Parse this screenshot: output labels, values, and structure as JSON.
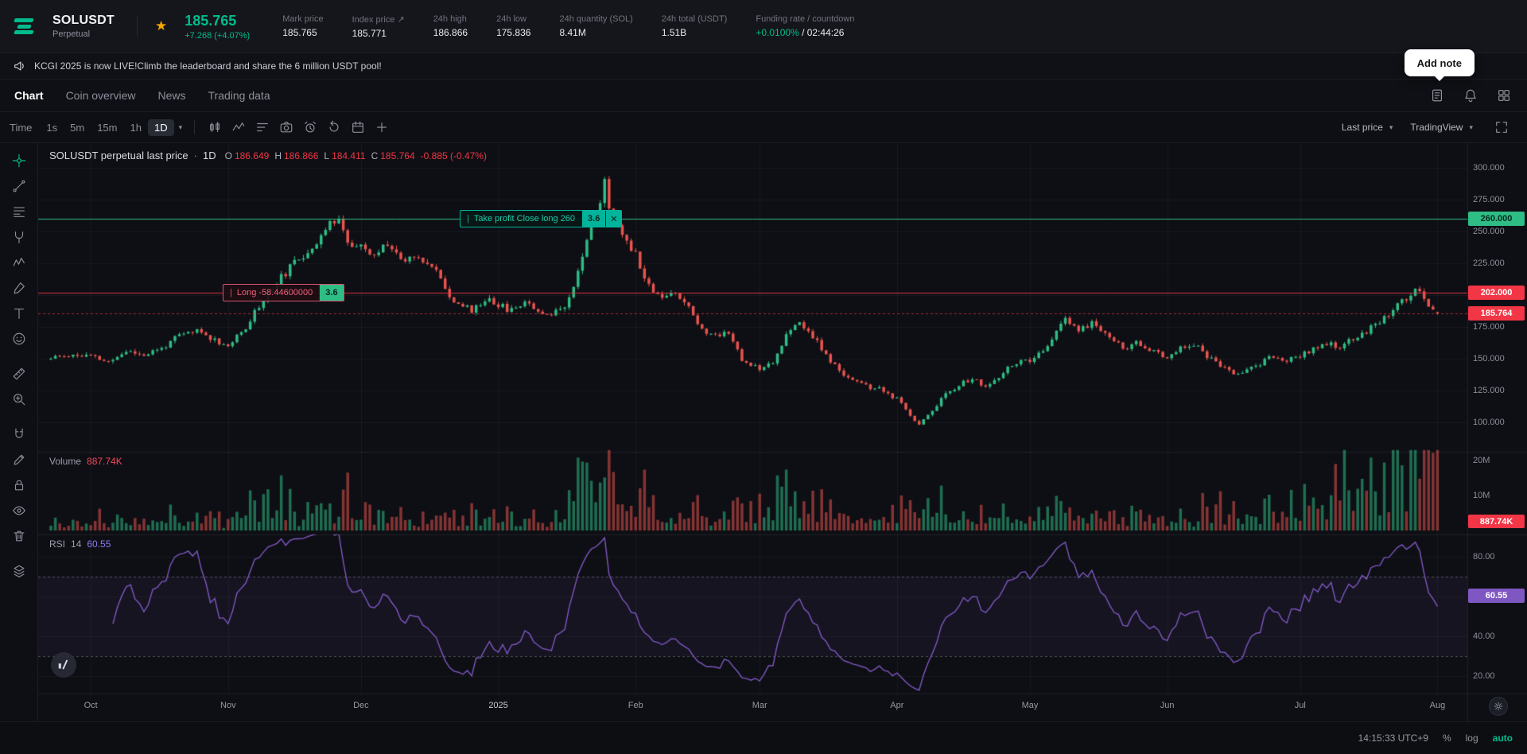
{
  "glyphs": {
    "star": "★",
    "caret": "▾",
    "close": "✕",
    "grip": "|",
    "dot": "·"
  },
  "colors": {
    "accent": "#01bc8d",
    "up": "#2ebd85",
    "down": "#e8544f",
    "badge_red": "#f23645",
    "rsi_purple": "#7e57c2"
  },
  "header": {
    "symbol": "SOLUSDT",
    "market_type": "Perpetual",
    "last_price": "185.765",
    "price_change": "+7.268 (+4.07%)",
    "stats": [
      {
        "label": "Mark price",
        "value": "185.765"
      },
      {
        "label": "Index price ↗",
        "value": "185.771"
      },
      {
        "label": "24h high",
        "value": "186.866"
      },
      {
        "label": "24h low",
        "value": "175.836"
      },
      {
        "label": "24h quantity (SOL)",
        "value": "8.41M"
      },
      {
        "label": "24h total (USDT)",
        "value": "1.51B"
      },
      {
        "label": "Funding rate / countdown",
        "value": "+0.0100%",
        "value_suffix": " / 02:44:26",
        "accent": true
      }
    ]
  },
  "announcement": {
    "text": "KCGI 2025 is now LIVE!Climb the leaderboard and share the 6 million USDT pool!"
  },
  "add_note": {
    "label": "Add note"
  },
  "tabs": {
    "items": [
      "Chart",
      "Coin overview",
      "News",
      "Trading data"
    ],
    "active": "Chart",
    "right_icons": [
      "note",
      "bell",
      "apps"
    ]
  },
  "chart_toolbar": {
    "time_label": "Time",
    "intervals": [
      "1s",
      "5m",
      "15m",
      "1h",
      "1D"
    ],
    "active_interval": "1D",
    "icons": [
      "chart-style",
      "indicators",
      "template",
      "snapshot",
      "alert",
      "replay",
      "calendar",
      "add"
    ],
    "last_price_label": "Last price",
    "provider_label": "TradingView"
  },
  "left_toolbar": {
    "tools": [
      {
        "name": "crosshair",
        "selected": true
      },
      {
        "name": "trend-line"
      },
      {
        "name": "fib-retracement"
      },
      {
        "name": "pitchfork"
      },
      {
        "name": "pattern"
      },
      {
        "name": "brush"
      },
      {
        "name": "text"
      },
      {
        "name": "emoji"
      },
      {
        "name": "ruler"
      },
      {
        "name": "zoom"
      },
      {
        "name": "magnet"
      },
      {
        "name": "draw"
      },
      {
        "name": "lock"
      },
      {
        "name": "hide"
      },
      {
        "name": "trash"
      },
      {
        "name": "object-tree"
      }
    ]
  },
  "legend": {
    "title": "SOLUSDT perpetual last price",
    "sep": "·",
    "interval": "1D",
    "ohlc": [
      {
        "k": "O",
        "v": "186.649"
      },
      {
        "k": "H",
        "v": "186.866"
      },
      {
        "k": "L",
        "v": "184.411"
      },
      {
        "k": "C",
        "v": "185.764"
      }
    ],
    "change": "-0.885 (-0.47%)"
  },
  "volume_pane": {
    "label": "Volume",
    "value": "887.74K",
    "badge": "887.74K",
    "ticks": [
      {
        "label": "20M",
        "m": 20
      },
      {
        "label": "10M",
        "m": 10
      }
    ]
  },
  "rsi_pane": {
    "label": "RSI",
    "period": "14",
    "value": "60.55",
    "badge": "60.55",
    "ticks": [
      {
        "label": "80.00",
        "v": 80
      },
      {
        "label": "40.00",
        "v": 40
      },
      {
        "label": "20.00",
        "v": 20
      }
    ]
  },
  "price_axis": {
    "ticks": [
      {
        "label": "300.000",
        "p": 300
      },
      {
        "label": "275.000",
        "p": 275
      },
      {
        "label": "250.000",
        "p": 250
      },
      {
        "label": "225.000",
        "p": 225
      },
      {
        "label": "175.000",
        "p": 175
      },
      {
        "label": "150.000",
        "p": 150
      },
      {
        "label": "125.000",
        "p": 125
      },
      {
        "label": "100.000",
        "p": 100
      }
    ]
  },
  "orders": {
    "take_profit": {
      "label": "Take profit Close long 260",
      "qty": "3.6",
      "price": 260,
      "axis_label": "260.000"
    },
    "position": {
      "label": "Long -58.44600000",
      "qty": "3.6",
      "price": 202,
      "axis_label": "202.000"
    }
  },
  "last_price_marker": {
    "price": 185.764,
    "axis_label": "185.764"
  },
  "time_axis": {
    "labels": [
      {
        "text": "Oct",
        "day": 9
      },
      {
        "text": "Nov",
        "day": 40
      },
      {
        "text": "Dec",
        "day": 70
      },
      {
        "text": "2025",
        "day": 101,
        "year": true
      },
      {
        "text": "Feb",
        "day": 132
      },
      {
        "text": "Mar",
        "day": 160
      },
      {
        "text": "Apr",
        "day": 191
      },
      {
        "text": "May",
        "day": 221
      },
      {
        "text": "Jun",
        "day": 252
      },
      {
        "text": "Jul",
        "day": 282
      },
      {
        "text": "Aug",
        "day": 313
      }
    ]
  },
  "status_bar": {
    "clock": "14:15:33 UTC+9",
    "percent_label": "%",
    "log_label": "log",
    "auto_label": "auto"
  },
  "chart_data": {
    "type": "candlestick",
    "symbol": "SOLUSDT perpetual",
    "interval": "1D",
    "days": 314,
    "seed": 11,
    "price_axis_range": [
      79,
      319
    ],
    "volume_axis_ticks_m": [
      10,
      20
    ],
    "rsi_axis": {
      "ticks": [
        80,
        60,
        40,
        20
      ],
      "bands": [
        70,
        30
      ]
    },
    "final_candle": {
      "open": 186.649,
      "high": 186.866,
      "low": 184.411,
      "close": 185.764
    },
    "price_anchors": [
      [
        0,
        150
      ],
      [
        4,
        153
      ],
      [
        9,
        152
      ],
      [
        13,
        147
      ],
      [
        17,
        156
      ],
      [
        21,
        153
      ],
      [
        25,
        158
      ],
      [
        29,
        168
      ],
      [
        33,
        172
      ],
      [
        37,
        165
      ],
      [
        40,
        160
      ],
      [
        43,
        170
      ],
      [
        47,
        192
      ],
      [
        51,
        210
      ],
      [
        55,
        225
      ],
      [
        59,
        238
      ],
      [
        63,
        255
      ],
      [
        65,
        263
      ],
      [
        67,
        240
      ],
      [
        70,
        237
      ],
      [
        73,
        230
      ],
      [
        76,
        242
      ],
      [
        79,
        228
      ],
      [
        83,
        232
      ],
      [
        87,
        218
      ],
      [
        91,
        195
      ],
      [
        95,
        188
      ],
      [
        99,
        198
      ],
      [
        101,
        192
      ],
      [
        104,
        188
      ],
      [
        107,
        196
      ],
      [
        110,
        188
      ],
      [
        113,
        185
      ],
      [
        116,
        192
      ],
      [
        119,
        218
      ],
      [
        121,
        246
      ],
      [
        123,
        262
      ],
      [
        125,
        288
      ],
      [
        126,
        270
      ],
      [
        128,
        252
      ],
      [
        130,
        244
      ],
      [
        132,
        232
      ],
      [
        135,
        208
      ],
      [
        138,
        198
      ],
      [
        141,
        202
      ],
      [
        144,
        192
      ],
      [
        147,
        172
      ],
      [
        150,
        168
      ],
      [
        153,
        172
      ],
      [
        156,
        148
      ],
      [
        160,
        143
      ],
      [
        163,
        148
      ],
      [
        166,
        168
      ],
      [
        169,
        178
      ],
      [
        172,
        168
      ],
      [
        175,
        152
      ],
      [
        178,
        140
      ],
      [
        181,
        134
      ],
      [
        184,
        128
      ],
      [
        187,
        126
      ],
      [
        191,
        118
      ],
      [
        194,
        106
      ],
      [
        196,
        98
      ],
      [
        199,
        110
      ],
      [
        202,
        122
      ],
      [
        205,
        130
      ],
      [
        208,
        134
      ],
      [
        211,
        128
      ],
      [
        214,
        134
      ],
      [
        217,
        146
      ],
      [
        221,
        148
      ],
      [
        224,
        155
      ],
      [
        227,
        172
      ],
      [
        229,
        180
      ],
      [
        232,
        172
      ],
      [
        235,
        178
      ],
      [
        239,
        168
      ],
      [
        242,
        158
      ],
      [
        245,
        162
      ],
      [
        248,
        156
      ],
      [
        252,
        152
      ],
      [
        255,
        158
      ],
      [
        258,
        162
      ],
      [
        261,
        152
      ],
      [
        264,
        144
      ],
      [
        267,
        138
      ],
      [
        270,
        142
      ],
      [
        273,
        146
      ],
      [
        276,
        152
      ],
      [
        279,
        148
      ],
      [
        282,
        152
      ],
      [
        285,
        158
      ],
      [
        288,
        162
      ],
      [
        291,
        158
      ],
      [
        294,
        166
      ],
      [
        297,
        172
      ],
      [
        300,
        180
      ],
      [
        303,
        188
      ],
      [
        306,
        198
      ],
      [
        308,
        206
      ],
      [
        310,
        196
      ],
      [
        312,
        188
      ],
      [
        313,
        185.76
      ]
    ],
    "indicators": [
      {
        "name": "Volume",
        "last": "887.74K"
      },
      {
        "name": "RSI",
        "period": 14,
        "last": 60.55,
        "bands": [
          70,
          30
        ]
      }
    ]
  }
}
